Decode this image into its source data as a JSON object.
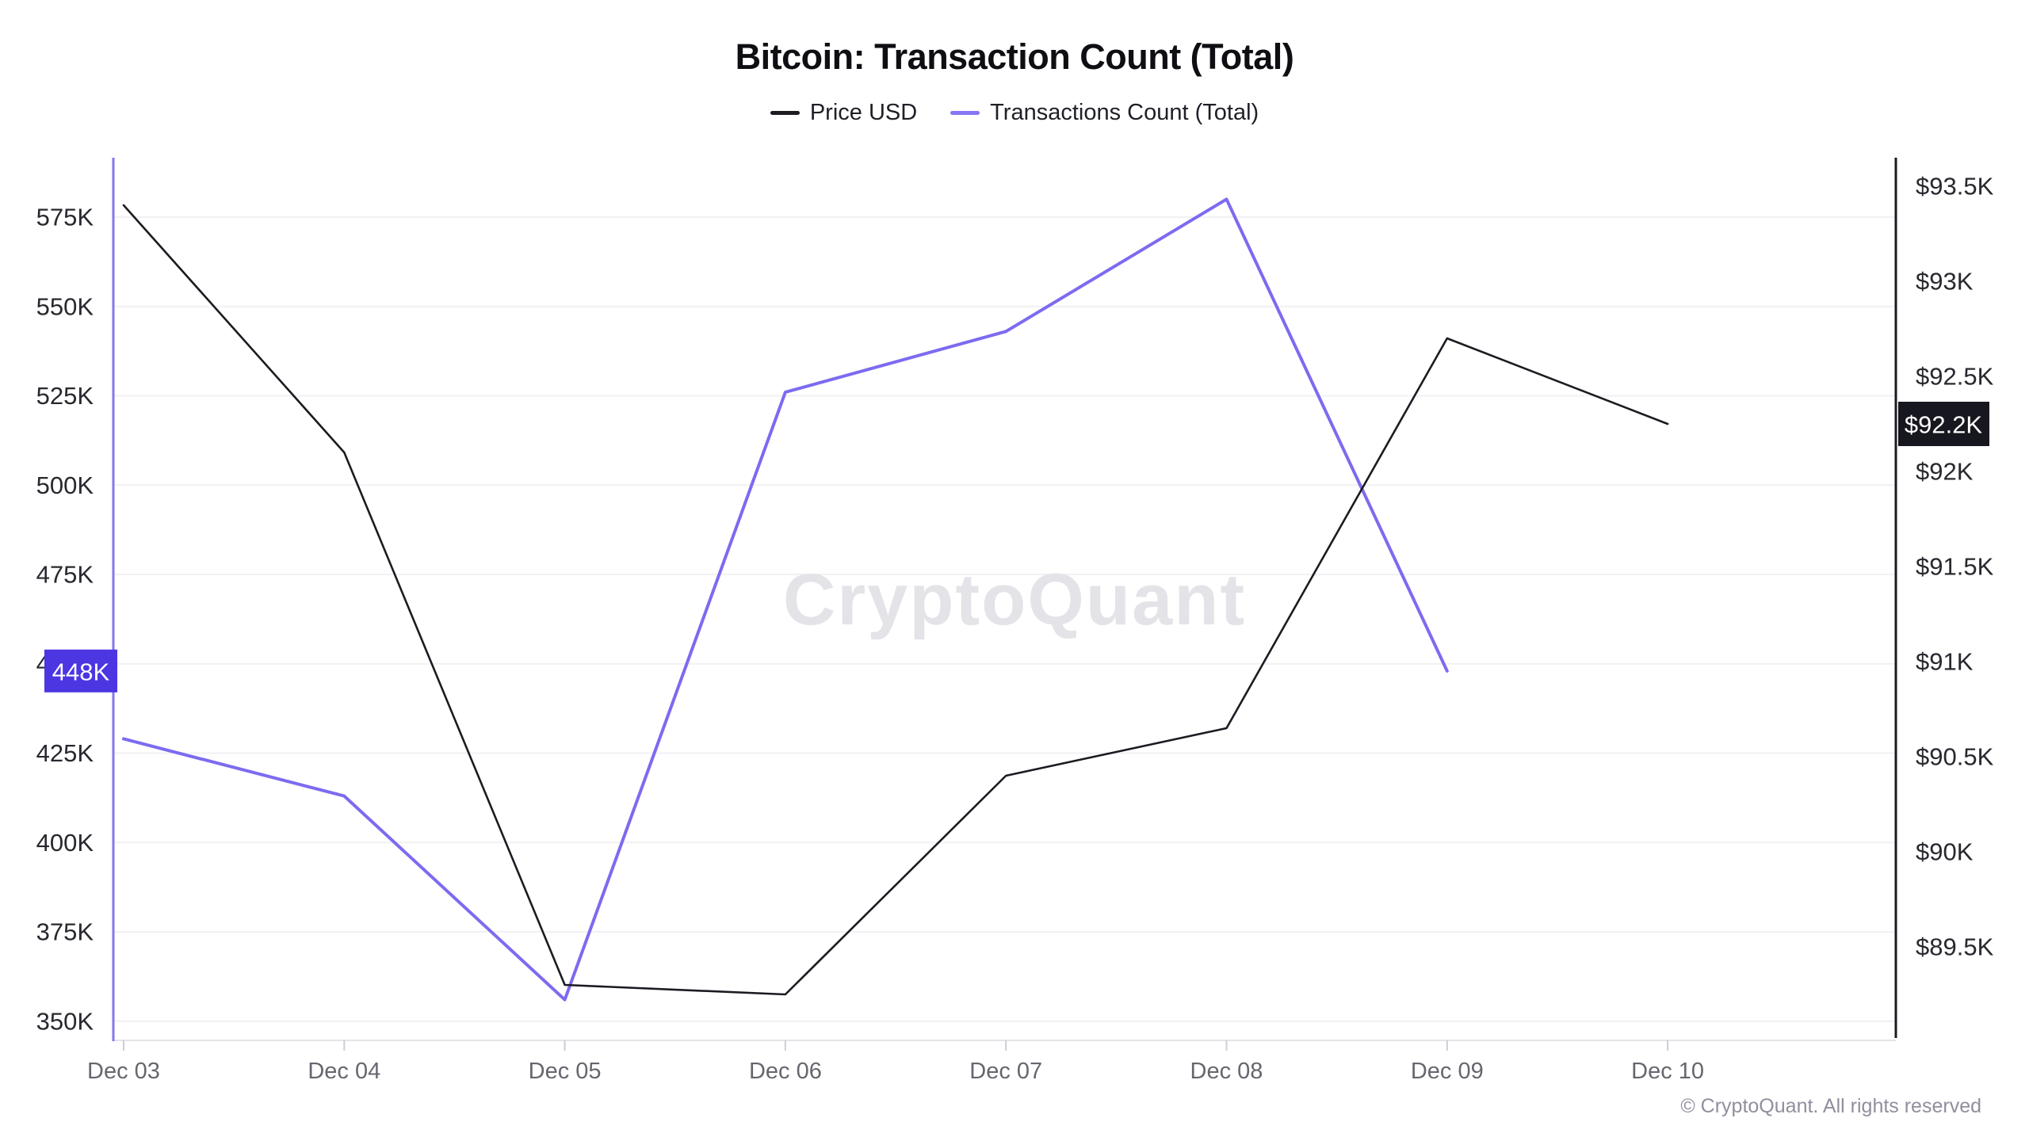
{
  "title": "Bitcoin: Transaction Count (Total)",
  "legend": [
    {
      "label": "Price USD",
      "color": "#1b1b22"
    },
    {
      "label": "Transactions Count (Total)",
      "color": "#8577f3"
    }
  ],
  "watermark": "CryptoQuant",
  "footer": "© CryptoQuant. All rights reserved",
  "colors": {
    "price_line": "#1b1b22",
    "transactions_line": "#7c6bf0",
    "left_axis_line": "#8477ee",
    "right_axis_line": "#1b1b22",
    "left_badge_bg": "#4b36e2",
    "right_badge_bg": "#17171f",
    "badge_text": "#ffffff",
    "grid_line": "#f1f1f4",
    "x_axis_line": "#e3e3e9",
    "x_tick": "#cdcdd6",
    "axis_label_text": "#28282f",
    "x_label_text": "#66666f",
    "watermark_text": "#e3e3e8"
  },
  "chart_data": {
    "type": "line",
    "title": "Bitcoin: Transaction Count (Total)",
    "categories": [
      "Dec 03",
      "Dec 04",
      "Dec 05",
      "Dec 06",
      "Dec 07",
      "Dec 08",
      "Dec 09",
      "Dec 10"
    ],
    "series": [
      {
        "name": "Price USD",
        "axis": "right",
        "unit": "USD, thousands",
        "color": "#1b1b22",
        "values": [
          93.4,
          92.1,
          89.3,
          89.25,
          90.4,
          90.65,
          92.7,
          92.25
        ]
      },
      {
        "name": "Transactions Count (Total)",
        "axis": "left",
        "unit": "transactions, thousands",
        "color": "#7c6bf0",
        "values": [
          429,
          413,
          356,
          526,
          543,
          580,
          448,
          null
        ]
      }
    ],
    "left_axis": {
      "title": "Transactions Count (Total)",
      "tick_labels": [
        "575K",
        "550K",
        "525K",
        "500K",
        "475K",
        "450K",
        "425K",
        "400K",
        "375K",
        "350K"
      ],
      "tick_values": [
        575,
        550,
        525,
        500,
        475,
        450,
        425,
        400,
        375,
        350
      ],
      "range": [
        345,
        591
      ],
      "current_badge": {
        "label": "448K",
        "value": 448
      }
    },
    "right_axis": {
      "title": "Price USD",
      "tick_labels": [
        "$93.5K",
        "$93K",
        "$92.5K",
        "$92K",
        "$91.5K",
        "$91K",
        "$90.5K",
        "$90K",
        "$89.5K"
      ],
      "tick_values": [
        93.5,
        93,
        92.5,
        92,
        91.5,
        91,
        90.5,
        90,
        89.5
      ],
      "range": [
        89.0,
        93.65
      ],
      "current_badge": {
        "label": "$92.2K",
        "value": 92.25
      }
    },
    "grid": true,
    "legend_position": "top"
  }
}
